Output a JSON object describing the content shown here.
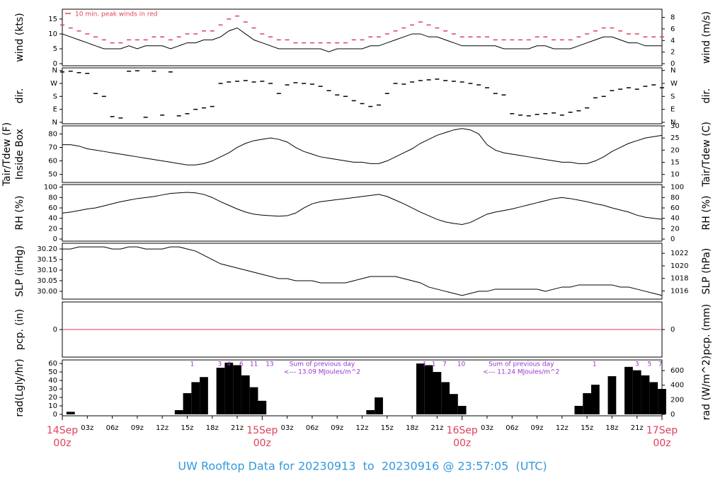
{
  "chart_data": {
    "type": "multi-panel",
    "title": "UW Rooftop Data for 20230913  to  20230916 @ 23:57:05  (UTC)",
    "xlim": [
      0,
      72
    ],
    "xticks": [
      {
        "value": 3,
        "label": "03z"
      },
      {
        "value": 6,
        "label": "06z"
      },
      {
        "value": 9,
        "label": "09z"
      },
      {
        "value": 12,
        "label": "12z"
      },
      {
        "value": 15,
        "label": "15z"
      },
      {
        "value": 18,
        "label": "18z"
      },
      {
        "value": 21,
        "label": "21z"
      },
      {
        "value": 27,
        "label": "03z"
      },
      {
        "value": 30,
        "label": "06z"
      },
      {
        "value": 33,
        "label": "09z"
      },
      {
        "value": 36,
        "label": "12z"
      },
      {
        "value": 39,
        "label": "15z"
      },
      {
        "value": 42,
        "label": "18z"
      },
      {
        "value": 45,
        "label": "21z"
      },
      {
        "value": 51,
        "label": "03z"
      },
      {
        "value": 54,
        "label": "06z"
      },
      {
        "value": 57,
        "label": "09z"
      },
      {
        "value": 60,
        "label": "12z"
      },
      {
        "value": 63,
        "label": "15z"
      },
      {
        "value": 66,
        "label": "18z"
      },
      {
        "value": 69,
        "label": "21z"
      }
    ],
    "day_ticks": [
      {
        "value": 0,
        "label": "14Sep",
        "sublabel": "00z"
      },
      {
        "value": 24,
        "label": "15Sep",
        "sublabel": "00z"
      },
      {
        "value": 48,
        "label": "16Sep",
        "sublabel": "00z"
      },
      {
        "value": 72,
        "label": "17Sep",
        "sublabel": "00z"
      }
    ],
    "x": [
      0,
      1,
      2,
      3,
      4,
      5,
      6,
      7,
      8,
      9,
      10,
      11,
      12,
      13,
      14,
      15,
      16,
      17,
      18,
      19,
      20,
      21,
      22,
      23,
      24,
      25,
      26,
      27,
      28,
      29,
      30,
      31,
      32,
      33,
      34,
      35,
      36,
      37,
      38,
      39,
      40,
      41,
      42,
      43,
      44,
      45,
      46,
      47,
      48,
      49,
      50,
      51,
      52,
      53,
      54,
      55,
      56,
      57,
      58,
      59,
      60,
      61,
      62,
      63,
      64,
      65,
      66,
      67,
      68,
      69,
      70,
      71,
      72
    ],
    "panels": [
      {
        "type": "line",
        "ylabel": "wind (kts)",
        "y2label": "wind (m/s)",
        "ylim": [
          -0.7,
          18.3
        ],
        "yticks": [
          0,
          5,
          10,
          15
        ],
        "y2lim": [
          -0.36,
          9.41
        ],
        "y2ticks": [
          0,
          2,
          4,
          6,
          8
        ],
        "series": [
          {
            "color": "#000000",
            "values": [
              10,
              9,
              8,
              7,
              6,
              5,
              5,
              5,
              6,
              5,
              6,
              6,
              6,
              5,
              6,
              7,
              7,
              8,
              8,
              9,
              11,
              12,
              10,
              8,
              7,
              6,
              5,
              5,
              5,
              5,
              5,
              5,
              4,
              5,
              5,
              5,
              5,
              6,
              6,
              7,
              8,
              9,
              10,
              10,
              9,
              9,
              8,
              7,
              6,
              6,
              6,
              6,
              6,
              5,
              5,
              5,
              5,
              6,
              6,
              5,
              5,
              5,
              6,
              7,
              8,
              9,
              9,
              8,
              7,
              7,
              6,
              6,
              6
            ]
          },
          {
            "type": "scatter",
            "name": "10 min. peak winds in red",
            "color": "#e0405a",
            "values": [
              13,
              12,
              11,
              10,
              9,
              8,
              7,
              7,
              8,
              8,
              8,
              9,
              9,
              8,
              9,
              10,
              10,
              11,
              11,
              13,
              15,
              16,
              14,
              12,
              10,
              9,
              8,
              8,
              7,
              7,
              7,
              7,
              7,
              7,
              7,
              8,
              8,
              9,
              9,
              10,
              11,
              12,
              13,
              14,
              13,
              12,
              11,
              10,
              9,
              9,
              9,
              9,
              8,
              8,
              8,
              8,
              8,
              9,
              9,
              8,
              8,
              8,
              9,
              10,
              11,
              12,
              12,
              11,
              10,
              10,
              9,
              9,
              9
            ]
          }
        ]
      },
      {
        "type": "scatter",
        "ylabel": "dir.",
        "y2label": "dir.",
        "ylim": [
          -10,
          378
        ],
        "yticks": [
          {
            "value": 0,
            "label": "N"
          },
          {
            "value": 90,
            "label": "E"
          },
          {
            "value": 180,
            "label": "S"
          },
          {
            "value": 270,
            "label": "W"
          },
          {
            "value": 360,
            "label": "N"
          }
        ],
        "series": [
          {
            "color": "#000000",
            "values": [
              350,
              355,
              345,
              340,
              200,
              180,
              40,
              30,
              355,
              358,
              35,
              355,
              50,
              350,
              45,
              60,
              90,
              100,
              110,
              270,
              280,
              285,
              290,
              280,
              285,
              270,
              200,
              260,
              275,
              270,
              265,
              250,
              220,
              190,
              180,
              150,
              130,
              110,
              120,
              200,
              270,
              265,
              280,
              290,
              295,
              300,
              290,
              285,
              280,
              270,
              260,
              240,
              200,
              190,
              60,
              50,
              45,
              55,
              60,
              65,
              50,
              70,
              80,
              100,
              170,
              180,
              220,
              230,
              240,
              230,
              250,
              260,
              240
            ]
          }
        ]
      },
      {
        "type": "line",
        "ylabel": "Tair/Tdew (F)",
        "ylabel2": "Inside Box",
        "y2label": "Tair/Tdew (C)",
        "ylim": [
          44,
          86
        ],
        "yticks": [
          50,
          60,
          70,
          80
        ],
        "y2lim": [
          6.7,
          30
        ],
        "y2ticks": [
          10,
          15,
          20,
          25,
          30
        ],
        "series": [
          {
            "color": "#000000",
            "values": [
              72,
              72,
              71,
              69,
              68,
              67,
              66,
              65,
              64,
              63,
              62,
              61,
              60,
              59,
              58,
              57,
              57,
              58,
              60,
              63,
              66,
              70,
              73,
              75,
              76,
              77,
              76,
              74,
              70,
              67,
              65,
              63,
              62,
              61,
              60,
              59,
              59,
              58,
              58,
              60,
              63,
              66,
              69,
              73,
              76,
              79,
              81,
              83,
              84,
              83,
              80,
              72,
              68,
              66,
              65,
              64,
              63,
              62,
              61,
              60,
              59,
              59,
              58,
              58,
              60,
              63,
              67,
              70,
              73,
              75,
              77,
              78,
              79
            ]
          }
        ]
      },
      {
        "type": "line",
        "ylabel": "RH (%)",
        "y2label": "RH (%)",
        "ylim": [
          -4,
          105
        ],
        "yticks": [
          0,
          20,
          40,
          60,
          80,
          100
        ],
        "y2lim": [
          -4,
          105
        ],
        "y2ticks": [
          0,
          20,
          40,
          60,
          80,
          100
        ],
        "series": [
          {
            "color": "#000000",
            "values": [
              50,
              52,
              55,
              58,
              60,
              64,
              68,
              72,
              75,
              78,
              80,
              82,
              85,
              88,
              89,
              90,
              89,
              86,
              80,
              72,
              65,
              58,
              52,
              48,
              46,
              45,
              44,
              45,
              50,
              60,
              68,
              72,
              74,
              76,
              78,
              80,
              82,
              84,
              86,
              82,
              75,
              68,
              60,
              52,
              45,
              38,
              33,
              30,
              28,
              32,
              40,
              48,
              52,
              55,
              58,
              62,
              66,
              70,
              74,
              78,
              80,
              78,
              75,
              72,
              68,
              65,
              60,
              56,
              52,
              46,
              42,
              40,
              38
            ]
          }
        ]
      },
      {
        "type": "line",
        "ylabel": "SLP (inHg)",
        "y2label": "SLP (hPa)",
        "ylim": [
          29.963,
          30.227
        ],
        "yticks": [
          {
            "value": 30,
            "label": "30.00"
          },
          30.05,
          {
            "value": 30.1,
            "label": "30.10"
          },
          30.15,
          {
            "value": 30.2,
            "label": "30.20"
          }
        ],
        "y2lim": [
          1014.7,
          1023.6
        ],
        "y2ticks": [
          1016,
          1018,
          1020,
          1022
        ],
        "series": [
          {
            "color": "#000000",
            "values": [
              30.2,
              30.2,
              30.21,
              30.21,
              30.21,
              30.21,
              30.2,
              30.2,
              30.21,
              30.21,
              30.2,
              30.2,
              30.2,
              30.21,
              30.21,
              30.2,
              30.19,
              30.17,
              30.15,
              30.13,
              30.12,
              30.11,
              30.1,
              30.09,
              30.08,
              30.07,
              30.06,
              30.06,
              30.05,
              30.05,
              30.05,
              30.04,
              30.04,
              30.04,
              30.04,
              30.05,
              30.06,
              30.07,
              30.07,
              30.07,
              30.07,
              30.06,
              30.05,
              30.04,
              30.02,
              30.01,
              30.0,
              29.99,
              29.98,
              29.99,
              30.0,
              30.0,
              30.01,
              30.01,
              30.01,
              30.01,
              30.01,
              30.01,
              30.0,
              30.01,
              30.02,
              30.02,
              30.03,
              30.03,
              30.03,
              30.03,
              30.03,
              30.02,
              30.02,
              30.01,
              30.0,
              29.99,
              29.98
            ]
          }
        ]
      },
      {
        "type": "line",
        "ylabel": "pcp. (in)",
        "y2label": "pcp. (mm)",
        "ylim": [
          -1,
          1
        ],
        "yticks": [
          0
        ],
        "y2lim": [
          -25.4,
          25.4
        ],
        "y2ticks": [
          0
        ],
        "series": [
          {
            "color": "#e0405a",
            "values": [
              0,
              0,
              0,
              0,
              0,
              0,
              0,
              0,
              0,
              0,
              0,
              0,
              0,
              0,
              0,
              0,
              0,
              0,
              0,
              0,
              0,
              0,
              0,
              0,
              0,
              0,
              0,
              0,
              0,
              0,
              0,
              0,
              0,
              0,
              0,
              0,
              0,
              0,
              0,
              0,
              0,
              0,
              0,
              0,
              0,
              0,
              0,
              0,
              0,
              0,
              0,
              0,
              0,
              0,
              0,
              0,
              0,
              0,
              0,
              0,
              0,
              0,
              0,
              0,
              0,
              0,
              0,
              0,
              0,
              0,
              0,
              0,
              0
            ]
          }
        ]
      },
      {
        "type": "bar",
        "ylabel": "rad(Lgly/hr)",
        "y2label": "rad (W/m^2)",
        "ylim": [
          -1.7,
          64.2
        ],
        "yticks": [
          0,
          10,
          20,
          30,
          40,
          50,
          60
        ],
        "y2lim": [
          -19.4,
          746
        ],
        "y2ticks": [
          0,
          200,
          400,
          600
        ],
        "series": [
          {
            "color": "#000000",
            "values": [
              0,
              3,
              0,
              0,
              0,
              0,
              0,
              0,
              0,
              0,
              0,
              0,
              0,
              0,
              5,
              25,
              38,
              44,
              0,
              55,
              61,
              58,
              46,
              32,
              16,
              0,
              0,
              0,
              0,
              0,
              0,
              0,
              0,
              0,
              0,
              0,
              0,
              5,
              20,
              0,
              0,
              0,
              0,
              60,
              58,
              50,
              38,
              24,
              10,
              0,
              0,
              0,
              0,
              0,
              0,
              0,
              0,
              0,
              0,
              0,
              0,
              0,
              10,
              25,
              35,
              0,
              45,
              0,
              56,
              52,
              46,
              38,
              30
            ]
          }
        ],
        "top_labels": [
          {
            "x": 15.6,
            "value": 1
          },
          {
            "x": 18.9,
            "value": 3
          },
          {
            "x": 20,
            "value": 4
          },
          {
            "x": 21.5,
            "value": 6
          },
          {
            "x": 23,
            "value": 11
          },
          {
            "x": 24.9,
            "value": 13
          },
          {
            "x": 43.5,
            "value": 1
          },
          {
            "x": 44.6,
            "value": 1
          },
          {
            "x": 45.9,
            "value": 7
          },
          {
            "x": 47.9,
            "value": 10
          },
          {
            "x": 63.9,
            "value": 1
          },
          {
            "x": 69,
            "value": 3
          },
          {
            "x": 70.5,
            "value": 5
          },
          {
            "x": 71.8,
            "value": 7
          }
        ],
        "notes": [
          {
            "x": 31.2,
            "label": "Sum of previous day",
            "sublabel": "<--- 13.09 MJoules/m^2"
          },
          {
            "x": 55.1,
            "label": "Sum of previous day",
            "sublabel": "<--- 11.24 MJoules/m^2"
          }
        ]
      }
    ]
  }
}
